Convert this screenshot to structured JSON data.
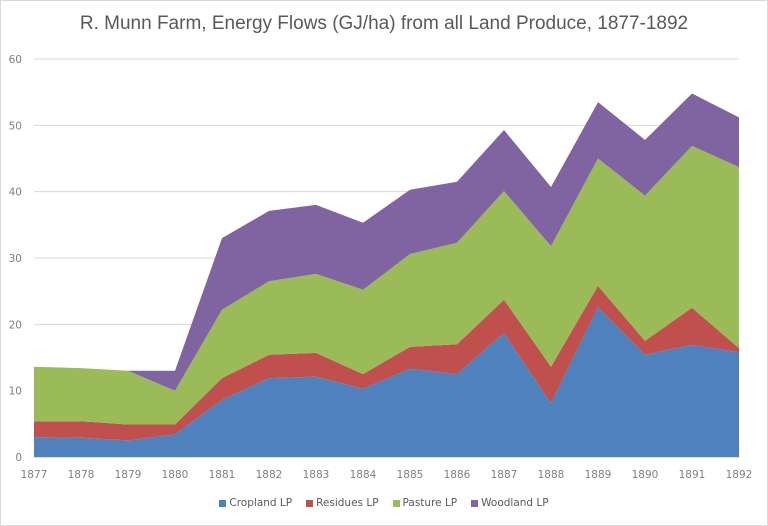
{
  "chart_data": {
    "type": "area",
    "stacked": true,
    "title": "R. Munn Farm, Energy Flows (GJ/ha) from all Land Produce, 1877-1892",
    "xlabel": "",
    "ylabel": "",
    "ylim": [
      0,
      60
    ],
    "yticks": [
      0,
      10,
      20,
      30,
      40,
      50,
      60
    ],
    "grid": true,
    "legend_position": "bottom",
    "categories": [
      "1877",
      "1878",
      "1879",
      "1880",
      "1881",
      "1882",
      "1883",
      "1884",
      "1885",
      "1886",
      "1887",
      "1888",
      "1889",
      "1890",
      "1891",
      "1892"
    ],
    "series": [
      {
        "name": "Cropland LP",
        "color": "#4f81bd",
        "values": [
          3.0,
          2.9,
          2.5,
          3.4,
          8.6,
          11.9,
          12.1,
          10.3,
          13.3,
          12.5,
          18.7,
          8.1,
          22.6,
          15.4,
          16.9,
          15.8
        ]
      },
      {
        "name": "Residues LP",
        "color": "#c0504d",
        "values": [
          2.4,
          2.5,
          2.4,
          1.5,
          3.3,
          3.5,
          3.6,
          2.2,
          3.3,
          4.5,
          5.0,
          5.5,
          3.2,
          2.1,
          5.6,
          0.6
        ]
      },
      {
        "name": "Pasture LP",
        "color": "#9bbb59",
        "values": [
          8.2,
          8.0,
          8.1,
          5.1,
          10.3,
          11.1,
          11.9,
          12.7,
          14.0,
          15.3,
          16.4,
          18.2,
          19.2,
          21.9,
          24.4,
          27.3
        ]
      },
      {
        "name": "Woodland LP",
        "color": "#8064a2",
        "values": [
          0.0,
          0.0,
          0.0,
          3.0,
          10.8,
          10.6,
          10.4,
          10.1,
          9.7,
          9.2,
          9.2,
          8.9,
          8.5,
          8.4,
          7.9,
          7.5
        ]
      }
    ]
  }
}
